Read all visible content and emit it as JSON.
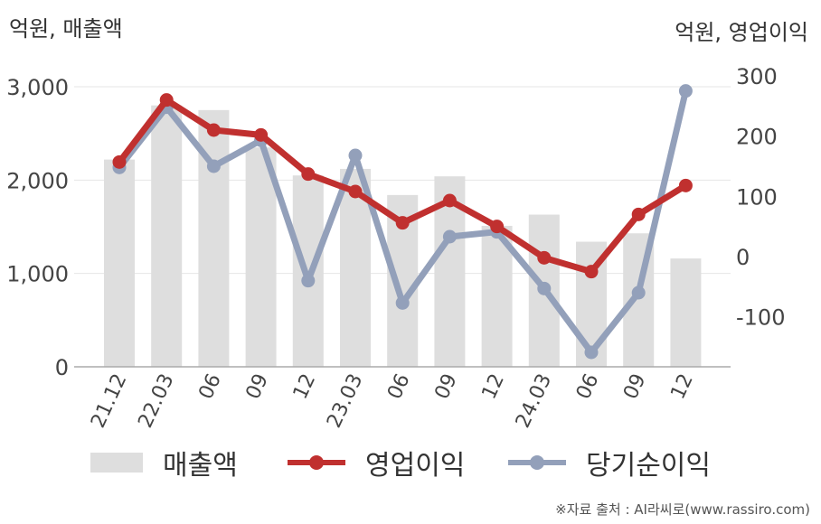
{
  "units": {
    "left": "억원, 매출액",
    "right": "억원, 영업이익"
  },
  "source": "※자료 출처 : AI라씨로(www.rassiro.com)",
  "colors": {
    "bar": "#dedede",
    "op": "#c0302f",
    "net": "#93a0ba",
    "grid": "#e6e6e6",
    "axis": "#aaaaaa"
  },
  "chart_data": {
    "type": "bar",
    "categories": [
      "21.12",
      "22.03",
      "06",
      "09",
      "12",
      "23.03",
      "06",
      "09",
      "12",
      "24.03",
      "06",
      "09",
      "12"
    ],
    "left_axis": {
      "ylim": [
        0,
        3000
      ],
      "ticks": [
        0,
        1000,
        2000,
        3000
      ],
      "tick_labels": [
        "0",
        "1,000",
        "2,000",
        "3,000"
      ]
    },
    "right_axis": {
      "ylim": [
        -180,
        330
      ],
      "ticks": [
        -100,
        0,
        100,
        200,
        300
      ],
      "tick_labels": [
        "-100",
        "0",
        "100",
        "200",
        "300"
      ]
    },
    "series": [
      {
        "name": "매출액",
        "type": "bar",
        "axis": "left",
        "values": [
          2220,
          2800,
          2750,
          2350,
          2050,
          2120,
          1840,
          2040,
          1510,
          1630,
          1340,
          1430,
          1160
        ]
      },
      {
        "name": "영업이익",
        "type": "line",
        "axis": "right",
        "values": [
          157,
          260,
          210,
          202,
          137,
          108,
          56,
          93,
          50,
          -2,
          -25,
          70,
          118
        ]
      },
      {
        "name": "당기순이익",
        "type": "line",
        "axis": "right",
        "values": [
          148,
          248,
          150,
          193,
          -40,
          168,
          -77,
          33,
          41,
          -53,
          -159,
          -60,
          275
        ]
      }
    ],
    "legend": {
      "position": "bottom",
      "labels": [
        "매출액",
        "영업이익",
        "당기순이익"
      ]
    }
  }
}
